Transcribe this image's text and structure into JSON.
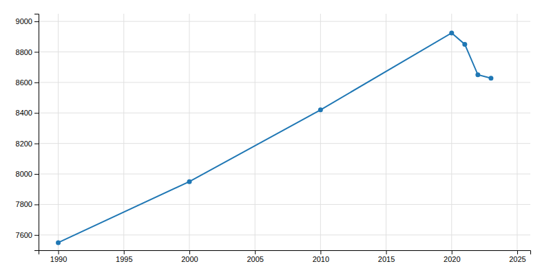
{
  "chart_data": {
    "type": "line",
    "x": [
      1990,
      2000,
      2010,
      2020,
      2021,
      2022,
      2023
    ],
    "values": [
      7550,
      7950,
      8420,
      8924,
      8850,
      8650,
      8628
    ],
    "marker": "circle",
    "xlim": [
      1988.5,
      2026
    ],
    "ylim": [
      7500,
      9050
    ],
    "xticks": [
      1990,
      1995,
      2000,
      2005,
      2010,
      2015,
      2020,
      2025
    ],
    "yticks": [
      7600,
      7800,
      8000,
      8200,
      8400,
      8600,
      8800,
      9000
    ],
    "grid": true
  }
}
